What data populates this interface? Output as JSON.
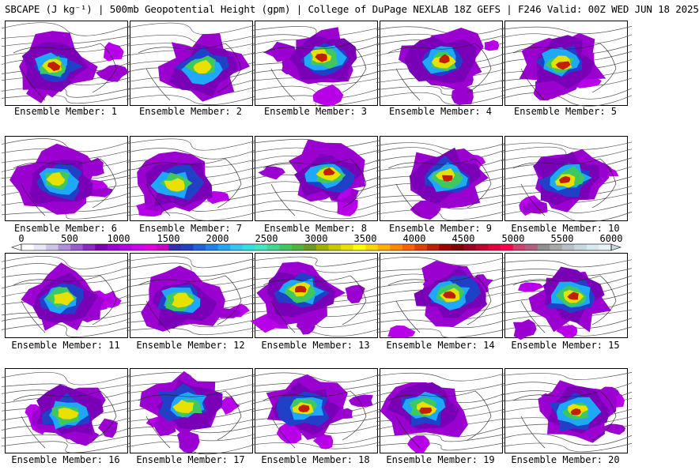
{
  "title": "SBCAPE (J kg⁻¹) | 500mb Geopotential Height (gpm) | College of DuPage NEXLAB 18Z GEFS | F246 Valid: 00Z WED JUN 18 2025",
  "colorbar": {
    "labels": [
      "0",
      "500",
      "1000",
      "1500",
      "2000",
      "2500",
      "3000",
      "3500",
      "4000",
      "4500",
      "5000",
      "5500",
      "6000"
    ],
    "colors": [
      "#ffffff",
      "#e6e6f5",
      "#cfc2e8",
      "#b090d8",
      "#9a5cc8",
      "#8a2cc0",
      "#7a00b8",
      "#9c00d8",
      "#b800e8",
      "#d000f0",
      "#e000e0",
      "#c800c8",
      "#3030b0",
      "#2040c8",
      "#2060e0",
      "#2080f0",
      "#20a8f8",
      "#30c8f0",
      "#30e0e0",
      "#40e8c0",
      "#40d890",
      "#40c860",
      "#50b040",
      "#709820",
      "#a0b000",
      "#c8c800",
      "#e8e000",
      "#ffff00",
      "#ffd800",
      "#ffb000",
      "#ff8800",
      "#ff6000",
      "#e04000",
      "#c02000",
      "#a00000",
      "#800000",
      "#a00020",
      "#c00030",
      "#e00040",
      "#ff0050",
      "#d04070",
      "#b06080",
      "#909090",
      "#a8a8a8",
      "#b8c0c8",
      "#c8d8e0",
      "#d8e8f0",
      "#e8f4f8"
    ]
  },
  "members": [
    {
      "caption": "Ensemble Member: 1"
    },
    {
      "caption": "Ensemble Member: 2"
    },
    {
      "caption": "Ensemble Member: 3"
    },
    {
      "caption": "Ensemble Member: 4"
    },
    {
      "caption": "Ensemble Member: 5"
    },
    {
      "caption": "Ensemble Member: 6"
    },
    {
      "caption": "Ensemble Member: 7"
    },
    {
      "caption": "Ensemble Member: 8"
    },
    {
      "caption": "Ensemble Member: 9"
    },
    {
      "caption": "Ensemble Member: 10"
    },
    {
      "caption": "Ensemble Member: 11"
    },
    {
      "caption": "Ensemble Member: 12"
    },
    {
      "caption": "Ensemble Member: 13"
    },
    {
      "caption": "Ensemble Member: 14"
    },
    {
      "caption": "Ensemble Member: 15"
    },
    {
      "caption": "Ensemble Member: 16"
    },
    {
      "caption": "Ensemble Member: 17"
    },
    {
      "caption": "Ensemble Member: 18"
    },
    {
      "caption": "Ensemble Member: 19"
    },
    {
      "caption": "Ensemble Member: 20"
    }
  ]
}
